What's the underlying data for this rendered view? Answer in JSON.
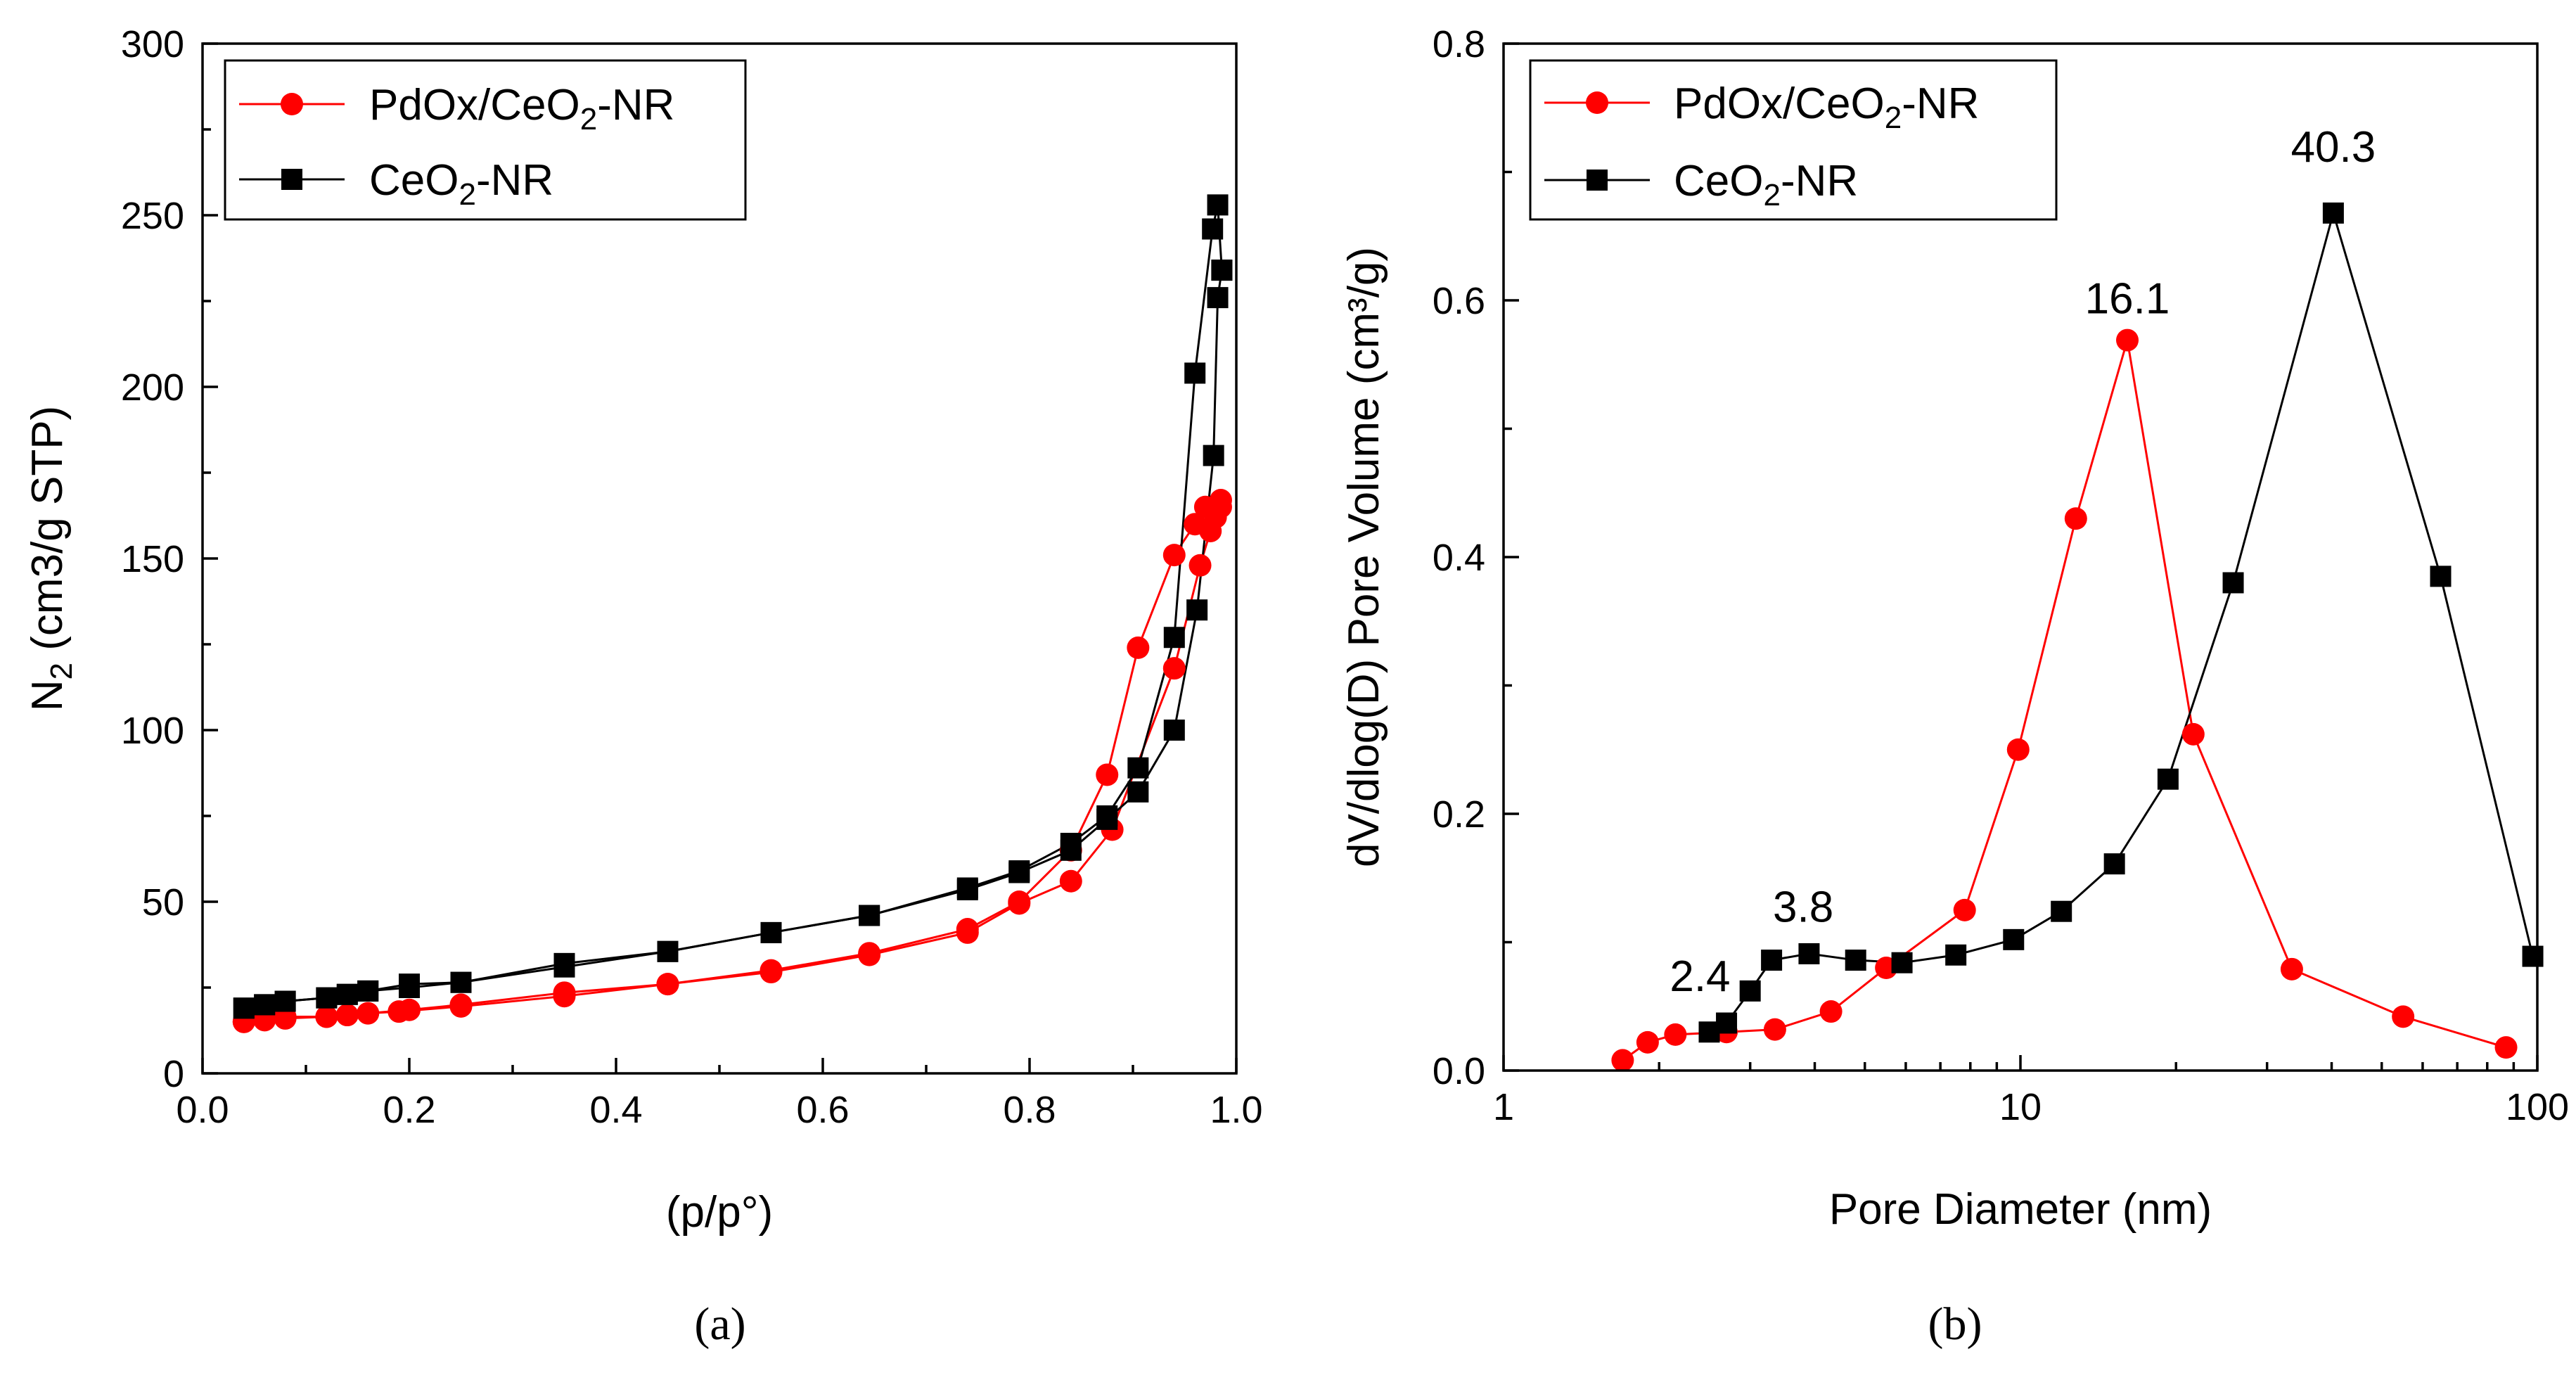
{
  "chart_data": [
    {
      "panel": "a",
      "type": "scatter",
      "title": "",
      "xlabel": "(p/p°)",
      "ylabel": "N2 (cm3/g STP)",
      "ylabel_parts": {
        "main": "N",
        "sub": "2",
        "rest": " (cm3/g STP)"
      },
      "xlim": [
        0.0,
        1.0
      ],
      "ylim": [
        0,
        300
      ],
      "xticks": [
        "0.0",
        "0.2",
        "0.4",
        "0.6",
        "0.8",
        "1.0"
      ],
      "yticks": [
        "0",
        "50",
        "100",
        "150",
        "200",
        "250",
        "300"
      ],
      "legend": {
        "placement": "top-left"
      },
      "series": [
        {
          "name": "PdOx/CeO2-NR",
          "name_parts": {
            "main": "PdOx/CeO",
            "sub": "2",
            "rest": "-NR"
          },
          "color": "#ff0000",
          "marker": "circle",
          "branches": [
            {
              "label": "adsorption",
              "x": [
                0.04,
                0.06,
                0.08,
                0.12,
                0.14,
                0.16,
                0.19,
                0.25,
                0.35,
                0.45,
                0.55,
                0.645,
                0.74,
                0.79,
                0.84,
                0.88,
                0.94,
                0.965,
                0.975,
                0.98,
                0.985
              ],
              "y": [
                15,
                16,
                16.5,
                16.5,
                17,
                17.5,
                18,
                19.5,
                22.5,
                26,
                29.5,
                34.5,
                41,
                49.5,
                56,
                71,
                118,
                148,
                158,
                162,
                165
              ]
            },
            {
              "label": "desorption",
              "x": [
                0.985,
                0.97,
                0.96,
                0.94,
                0.905,
                0.875,
                0.84,
                0.79,
                0.74,
                0.645,
                0.55,
                0.45,
                0.35,
                0.25,
                0.2,
                0.16,
                0.14,
                0.12,
                0.08,
                0.06,
                0.04
              ],
              "y": [
                167,
                165,
                160,
                151,
                124,
                87,
                65,
                50,
                42,
                35,
                30,
                26,
                23.5,
                20,
                18.5,
                17.5,
                17,
                16.5,
                16,
                15.5,
                15
              ]
            }
          ]
        },
        {
          "name": "CeO2-NR",
          "name_parts": {
            "main": "CeO",
            "sub": "2",
            "rest": "-NR"
          },
          "color": "#000000",
          "marker": "square",
          "branches": [
            {
              "label": "adsorption",
              "x": [
                0.04,
                0.06,
                0.08,
                0.12,
                0.14,
                0.16,
                0.2,
                0.25,
                0.35,
                0.45,
                0.55,
                0.645,
                0.74,
                0.79,
                0.84,
                0.875,
                0.905,
                0.94,
                0.962,
                0.978,
                0.982,
                0.986
              ],
              "y": [
                19,
                20,
                21,
                22,
                23,
                24,
                26,
                26.5,
                32,
                35.5,
                41,
                46,
                53.5,
                58.5,
                65,
                74,
                82,
                100,
                135,
                180,
                226,
                234
              ]
            },
            {
              "label": "desorption",
              "x": [
                0.986,
                0.982,
                0.977,
                0.96,
                0.94,
                0.905,
                0.875,
                0.84,
                0.79,
                0.74,
                0.645,
                0.55,
                0.45,
                0.35,
                0.25,
                0.2,
                0.16,
                0.14,
                0.12,
                0.08,
                0.06,
                0.04
              ],
              "y": [
                234,
                253,
                246,
                204,
                127,
                89,
                75,
                67,
                59,
                54,
                46,
                41,
                35.5,
                31,
                26.5,
                25,
                24,
                23,
                22,
                21,
                20,
                19
              ]
            }
          ]
        }
      ]
    },
    {
      "panel": "b",
      "type": "line",
      "title": "",
      "xlabel": "Pore Diameter (nm)",
      "ylabel": "dV/dlog(D) Pore Volume (cm³/g)",
      "xscale": "log",
      "xlim": [
        1,
        100
      ],
      "ylim": [
        0.0,
        0.8
      ],
      "xticks": [
        "1",
        "10",
        "100"
      ],
      "yticks": [
        "0.0",
        "0.2",
        "0.4",
        "0.6",
        "0.8"
      ],
      "legend": {
        "placement": "top-left"
      },
      "annotations": [
        {
          "text": "2.4",
          "x": 2.4,
          "y": 0.074
        },
        {
          "text": "3.8",
          "x": 3.8,
          "y": 0.128
        },
        {
          "text": "16.1",
          "x": 16.1,
          "y": 0.602
        },
        {
          "text": "40.3",
          "x": 40.3,
          "y": 0.72
        }
      ],
      "series": [
        {
          "name": "PdOx/CeO2-NR",
          "name_parts": {
            "main": "PdOx/CeO",
            "sub": "2",
            "rest": "-NR"
          },
          "color": "#ff0000",
          "marker": "circle",
          "x": [
            1.7,
            1.9,
            2.15,
            2.7,
            3.35,
            4.3,
            5.5,
            7.8,
            9.9,
            12.8,
            16.1,
            21.6,
            33.5,
            55,
            87
          ],
          "y": [
            0.008,
            0.022,
            0.028,
            0.03,
            0.032,
            0.046,
            0.08,
            0.125,
            0.25,
            0.43,
            0.569,
            0.262,
            0.079,
            0.042,
            0.018
          ]
        },
        {
          "name": "CeO2-NR",
          "name_parts": {
            "main": "CeO",
            "sub": "2",
            "rest": "-NR"
          },
          "color": "#000000",
          "marker": "square",
          "x": [
            2.5,
            2.7,
            3.0,
            3.3,
            3.9,
            4.8,
            5.9,
            7.5,
            9.7,
            12.0,
            15.2,
            19.3,
            25.8,
            40.3,
            65,
            98
          ],
          "y": [
            0.03,
            0.037,
            0.062,
            0.086,
            0.091,
            0.086,
            0.084,
            0.09,
            0.102,
            0.124,
            0.161,
            0.227,
            0.38,
            0.668,
            0.385,
            0.089
          ]
        }
      ]
    }
  ],
  "panel_labels": [
    "(a)",
    "(b)"
  ]
}
